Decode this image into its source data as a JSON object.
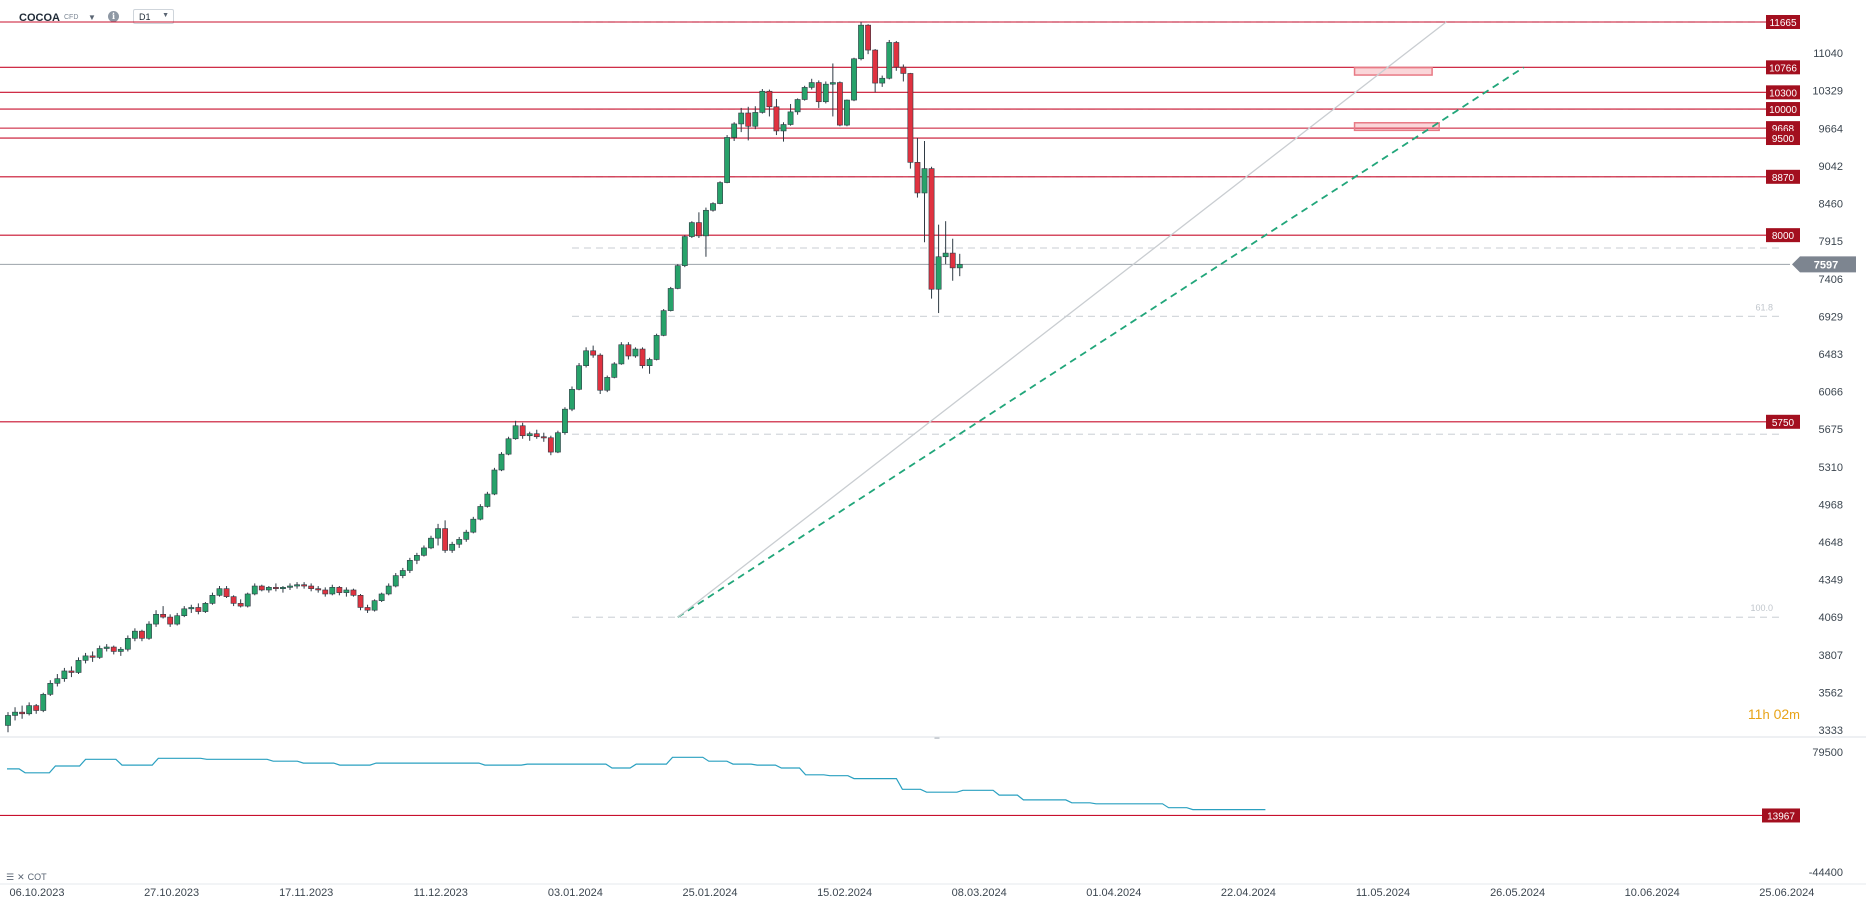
{
  "toolbar": {
    "symbol": "COCOA",
    "instrument_type": "CFD",
    "timeframe": "D1",
    "info_icon": "info-icon",
    "dropdown_icon": "chevron-down-icon"
  },
  "countdown": {
    "hours": "11",
    "hours_unit": "h",
    "minutes": "02",
    "minutes_unit": "m"
  },
  "cot_label": "COT",
  "colors": {
    "up": "#27a26a",
    "down": "#e03240",
    "level": "#c8102e",
    "trend": "#21a67a",
    "cot": "#2aa0c0",
    "price_tag": "#7d8590"
  },
  "chart_data": [
    {
      "type": "candlestick",
      "title": "",
      "price_axis_ticks": [
        11040,
        10329,
        9664,
        9042,
        8460,
        7915,
        7406,
        6929,
        6483,
        6066,
        5675,
        5310,
        4968,
        4648,
        4349,
        4069,
        3807,
        3562,
        3333
      ],
      "x_axis_ticks": [
        "06.10.2023",
        "27.10.2023",
        "17.11.2023",
        "11.12.2023",
        "03.01.2024",
        "25.01.2024",
        "15.02.2024",
        "08.03.2024",
        "01.04.2024",
        "22.04.2024",
        "11.05.2024",
        "26.05.2024",
        "10.06.2024",
        "25.06.2024"
      ],
      "current_price": 7597,
      "horizontal_levels": [
        {
          "label": "11665",
          "price": 11665
        },
        {
          "label": "10766",
          "price": 10766
        },
        {
          "label": "10300",
          "price": 10300
        },
        {
          "label": "10000",
          "price": 10000
        },
        {
          "label": "9668",
          "price": 9668
        },
        {
          "label": "9500",
          "price": 9500
        },
        {
          "label": "8870",
          "price": 8870
        },
        {
          "label": "8000",
          "price": 8000
        },
        {
          "label": "5750",
          "price": 5750
        }
      ],
      "fibonacci_labels": [
        {
          "label": "61.8",
          "price": 6929
        },
        {
          "label": "100.0",
          "price": 4069
        }
      ],
      "candles": [
        [
          3360,
          3440,
          3320,
          3420
        ],
        [
          3420,
          3470,
          3390,
          3440
        ],
        [
          3440,
          3480,
          3400,
          3430
        ],
        [
          3430,
          3500,
          3420,
          3480
        ],
        [
          3480,
          3490,
          3430,
          3450
        ],
        [
          3450,
          3560,
          3440,
          3550
        ],
        [
          3550,
          3640,
          3540,
          3620
        ],
        [
          3620,
          3680,
          3600,
          3650
        ],
        [
          3650,
          3720,
          3630,
          3700
        ],
        [
          3700,
          3730,
          3660,
          3690
        ],
        [
          3690,
          3790,
          3680,
          3770
        ],
        [
          3770,
          3820,
          3750,
          3800
        ],
        [
          3800,
          3830,
          3760,
          3790
        ],
        [
          3790,
          3870,
          3780,
          3850
        ],
        [
          3850,
          3880,
          3830,
          3860
        ],
        [
          3860,
          3870,
          3810,
          3830
        ],
        [
          3830,
          3860,
          3800,
          3845
        ],
        [
          3845,
          3940,
          3830,
          3920
        ],
        [
          3920,
          3990,
          3900,
          3970
        ],
        [
          3970,
          3980,
          3900,
          3920
        ],
        [
          3920,
          4040,
          3910,
          4020
        ],
        [
          4020,
          4120,
          4000,
          4090
        ],
        [
          4090,
          4150,
          4060,
          4070
        ],
        [
          4070,
          4090,
          4000,
          4020
        ],
        [
          4020,
          4100,
          4010,
          4080
        ],
        [
          4080,
          4150,
          4070,
          4130
        ],
        [
          4130,
          4160,
          4100,
          4140
        ],
        [
          4140,
          4170,
          4090,
          4110
        ],
        [
          4110,
          4180,
          4100,
          4170
        ],
        [
          4170,
          4250,
          4160,
          4230
        ],
        [
          4230,
          4300,
          4220,
          4280
        ],
        [
          4280,
          4300,
          4210,
          4220
        ],
        [
          4220,
          4230,
          4150,
          4170
        ],
        [
          4170,
          4200,
          4140,
          4150
        ],
        [
          4150,
          4250,
          4140,
          4240
        ],
        [
          4240,
          4320,
          4230,
          4300
        ],
        [
          4300,
          4310,
          4260,
          4270
        ],
        [
          4270,
          4300,
          4250,
          4290
        ],
        [
          4290,
          4320,
          4260,
          4280
        ],
        [
          4280,
          4300,
          4250,
          4290
        ],
        [
          4290,
          4320,
          4270,
          4300
        ],
        [
          4300,
          4330,
          4280,
          4310
        ],
        [
          4310,
          4330,
          4280,
          4300
        ],
        [
          4300,
          4320,
          4260,
          4280
        ],
        [
          4280,
          4300,
          4250,
          4270
        ],
        [
          4270,
          4290,
          4220,
          4240
        ],
        [
          4240,
          4310,
          4230,
          4290
        ],
        [
          4290,
          4300,
          4230,
          4250
        ],
        [
          4250,
          4290,
          4220,
          4270
        ],
        [
          4270,
          4280,
          4220,
          4230
        ],
        [
          4230,
          4240,
          4120,
          4140
        ],
        [
          4140,
          4160,
          4100,
          4120
        ],
        [
          4120,
          4200,
          4110,
          4190
        ],
        [
          4190,
          4250,
          4180,
          4240
        ],
        [
          4240,
          4320,
          4230,
          4300
        ],
        [
          4300,
          4400,
          4290,
          4380
        ],
        [
          4380,
          4440,
          4360,
          4420
        ],
        [
          4420,
          4520,
          4400,
          4500
        ],
        [
          4500,
          4560,
          4470,
          4540
        ],
        [
          4540,
          4620,
          4530,
          4600
        ],
        [
          4600,
          4700,
          4590,
          4680
        ],
        [
          4680,
          4800,
          4620,
          4760
        ],
        [
          4760,
          4830,
          4560,
          4580
        ],
        [
          4580,
          4650,
          4560,
          4630
        ],
        [
          4630,
          4690,
          4600,
          4670
        ],
        [
          4670,
          4750,
          4650,
          4730
        ],
        [
          4730,
          4860,
          4720,
          4840
        ],
        [
          4840,
          4970,
          4830,
          4950
        ],
        [
          4950,
          5080,
          4940,
          5060
        ],
        [
          5060,
          5300,
          5050,
          5280
        ],
        [
          5280,
          5450,
          5270,
          5430
        ],
        [
          5430,
          5600,
          5420,
          5580
        ],
        [
          5580,
          5760,
          5570,
          5710
        ],
        [
          5710,
          5740,
          5580,
          5610
        ],
        [
          5610,
          5650,
          5560,
          5630
        ],
        [
          5630,
          5670,
          5580,
          5600
        ],
        [
          5600,
          5640,
          5550,
          5590
        ],
        [
          5590,
          5610,
          5420,
          5450
        ],
        [
          5450,
          5660,
          5440,
          5640
        ],
        [
          5640,
          5900,
          5620,
          5880
        ],
        [
          5880,
          6120,
          5860,
          6090
        ],
        [
          6090,
          6380,
          6080,
          6350
        ],
        [
          6350,
          6560,
          6330,
          6520
        ],
        [
          6520,
          6580,
          6440,
          6470
        ],
        [
          6470,
          6490,
          6040,
          6080
        ],
        [
          6080,
          6240,
          6060,
          6220
        ],
        [
          6220,
          6390,
          6210,
          6370
        ],
        [
          6370,
          6620,
          6360,
          6590
        ],
        [
          6590,
          6620,
          6420,
          6460
        ],
        [
          6460,
          6560,
          6440,
          6540
        ],
        [
          6540,
          6560,
          6320,
          6350
        ],
        [
          6350,
          6440,
          6260,
          6420
        ],
        [
          6420,
          6720,
          6410,
          6700
        ],
        [
          6700,
          7020,
          6690,
          7000
        ],
        [
          7000,
          7300,
          6990,
          7280
        ],
        [
          7280,
          7600,
          7270,
          7580
        ],
        [
          7580,
          8000,
          7560,
          7980
        ],
        [
          7980,
          8200,
          7960,
          8180
        ],
        [
          8180,
          8330,
          7960,
          7990
        ],
        [
          7990,
          8400,
          7700,
          8360
        ],
        [
          8360,
          8480,
          8340,
          8460
        ],
        [
          8460,
          8800,
          8450,
          8780
        ],
        [
          8780,
          9550,
          8770,
          9510
        ],
        [
          9510,
          9770,
          9450,
          9740
        ],
        [
          9740,
          10020,
          9600,
          9930
        ],
        [
          9930,
          10040,
          9460,
          9700
        ],
        [
          9700,
          10050,
          9650,
          9940
        ],
        [
          9940,
          10360,
          9920,
          10320
        ],
        [
          10320,
          10350,
          9870,
          10040
        ],
        [
          10040,
          10180,
          9550,
          9620
        ],
        [
          9620,
          9770,
          9440,
          9730
        ],
        [
          9730,
          10090,
          9710,
          9950
        ],
        [
          9950,
          10190,
          9900,
          10170
        ],
        [
          10170,
          10420,
          10150,
          10390
        ],
        [
          10390,
          10550,
          10350,
          10480
        ],
        [
          10480,
          10520,
          10020,
          10130
        ],
        [
          10130,
          10500,
          10100,
          10450
        ],
        [
          10450,
          10840,
          9870,
          10480
        ],
        [
          10480,
          10500,
          9700,
          9720
        ],
        [
          9720,
          10170,
          9700,
          10160
        ],
        [
          10160,
          10950,
          10140,
          10930
        ],
        [
          10930,
          11665,
          10900,
          11600
        ],
        [
          11600,
          11620,
          11020,
          11100
        ],
        [
          11100,
          11120,
          10300,
          10470
        ],
        [
          10470,
          10610,
          10400,
          10560
        ],
        [
          10560,
          11300,
          10540,
          11250
        ],
        [
          11250,
          11280,
          10700,
          10770
        ],
        [
          10770,
          10820,
          10500,
          10650
        ],
        [
          10650,
          10660,
          9000,
          9100
        ],
        [
          9100,
          9500,
          8550,
          8620
        ],
        [
          8620,
          9450,
          7900,
          9000
        ],
        [
          9000,
          9030,
          7150,
          7270
        ],
        [
          7270,
          8150,
          6970,
          7700
        ],
        [
          7700,
          8200,
          7600,
          7750
        ],
        [
          7750,
          7950,
          7380,
          7550
        ],
        [
          7550,
          7740,
          7440,
          7597
        ]
      ],
      "first_candle_date": "06.10.2023",
      "trend_lines": [
        {
          "style": "dashed",
          "from_candle": 95,
          "from_price": 4069,
          "to_candle": 215,
          "to_price": 10766
        },
        {
          "style": "solid-gray",
          "from_candle": 95,
          "from_price": 4069,
          "to_candle": 204,
          "to_price": 11665
        }
      ],
      "zones": [
        {
          "from_candle": 191,
          "to_candle": 202,
          "low": 10620,
          "high": 10760
        },
        {
          "from_candle": 191,
          "to_candle": 203,
          "low": 9630,
          "high": 9760
        }
      ]
    },
    {
      "type": "line",
      "title": "",
      "indicator": "COT",
      "y_axis_ticks": [
        79500,
        -44400
      ],
      "level": {
        "label": "13967",
        "value": 13967
      },
      "values": [
        62000,
        62000,
        62000,
        58000,
        58000,
        58000,
        58000,
        58000,
        65000,
        65000,
        65000,
        65000,
        65000,
        72000,
        72000,
        72000,
        72000,
        72000,
        72000,
        66000,
        66000,
        66000,
        66000,
        66000,
        66000,
        73000,
        73000,
        73000,
        73000,
        73000,
        73000,
        73000,
        73000,
        72000,
        72000,
        72000,
        72000,
        72000,
        72000,
        72000,
        72000,
        72000,
        72000,
        72000,
        70000,
        70000,
        70000,
        70000,
        70000,
        68000,
        68000,
        68000,
        68000,
        68000,
        68000,
        66000,
        66000,
        66000,
        66000,
        66000,
        66000,
        68000,
        68000,
        68000,
        68000,
        68000,
        68000,
        68000,
        68000,
        68000,
        68000,
        68000,
        68000,
        68000,
        68000,
        68000,
        68000,
        68000,
        68000,
        66000,
        66000,
        66000,
        66000,
        66000,
        66000,
        66000,
        67000,
        67000,
        67000,
        67000,
        67000,
        67000,
        67000,
        67000,
        67000,
        67000,
        67000,
        67000,
        67000,
        67000,
        63000,
        63000,
        63000,
        63000,
        67000,
        67000,
        67000,
        67000,
        67000,
        67000,
        74000,
        74000,
        74000,
        74000,
        74000,
        74000,
        70000,
        70000,
        70000,
        70000,
        67000,
        67000,
        67000,
        67000,
        66000,
        66000,
        66000,
        66000,
        63000,
        63000,
        63000,
        63000,
        56000,
        56000,
        56000,
        56000,
        55000,
        55000,
        55000,
        55000,
        52000,
        52000,
        52000,
        52000,
        52000,
        52000,
        52000,
        52000,
        41000,
        41000,
        41000,
        41000,
        38000,
        38000,
        38000,
        38000,
        38000,
        38000,
        40000,
        40000,
        40000,
        40000,
        40000,
        40000,
        35000,
        35000,
        35000,
        35000,
        30000,
        30000,
        30000,
        30000,
        30000,
        30000,
        30000,
        30000,
        27000,
        27000,
        27000,
        27000,
        26000,
        26000,
        26000,
        26000,
        26000,
        26000,
        26000,
        26000,
        26000,
        26000,
        26000,
        26000,
        22000,
        22000,
        22000,
        22000,
        20000,
        20000,
        20000,
        20000,
        20000,
        20000,
        20000,
        20000,
        20000,
        20000,
        20000,
        20000,
        20000
      ]
    }
  ]
}
